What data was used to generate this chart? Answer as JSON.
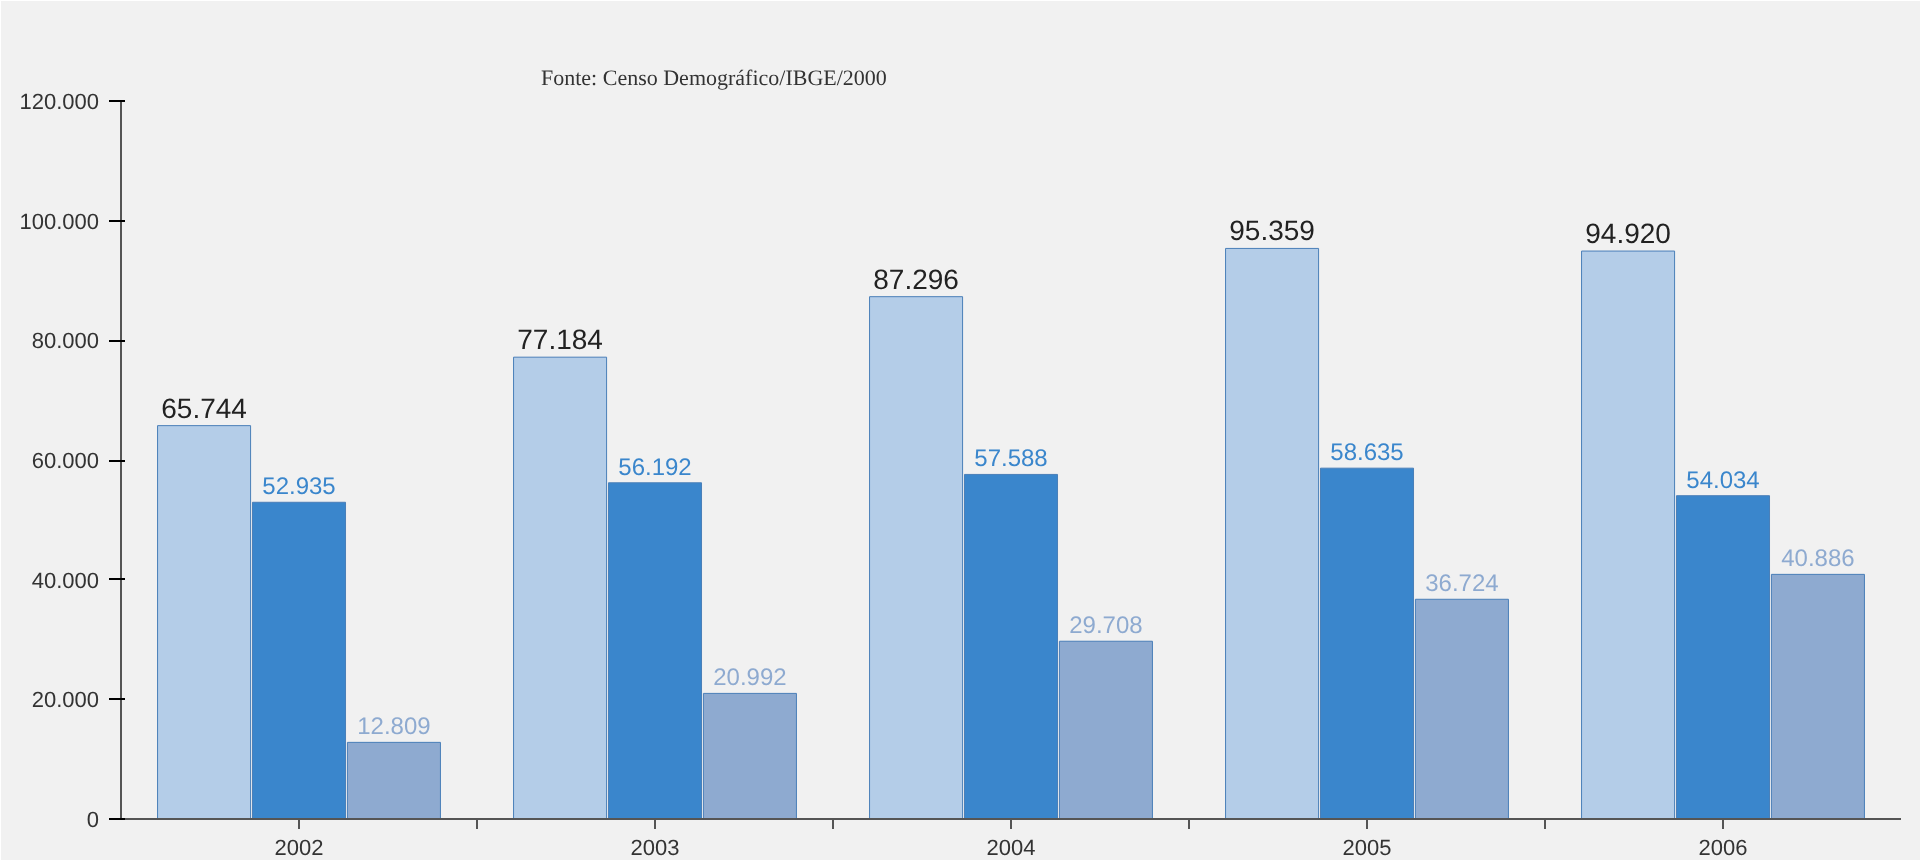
{
  "chart_data": {
    "type": "bar",
    "categories": [
      "2002",
      "2003",
      "2004",
      "2005",
      "2006"
    ],
    "series": [
      {
        "color": "#b4cde8",
        "values": [
          65744,
          77184,
          87296,
          95359,
          94920
        ],
        "value_labels": [
          "65.744",
          "77.184",
          "87.296",
          "95.359",
          "94.920"
        ]
      },
      {
        "color": "#3a86cc",
        "values": [
          52935,
          56192,
          57588,
          58635,
          54034
        ],
        "value_labels": [
          "52.935",
          "56.192",
          "57.588",
          "58.635",
          "54.034"
        ]
      },
      {
        "color": "#8eaad0",
        "values": [
          12809,
          20992,
          29708,
          36724,
          40886
        ],
        "value_labels": [
          "12.809",
          "20.992",
          "29.708",
          "36.724",
          "40.886"
        ]
      }
    ],
    "ylim": [
      0,
      120000
    ],
    "yticks": [
      {
        "value": 0,
        "label": "0"
      },
      {
        "value": 20000,
        "label": "20.000"
      },
      {
        "value": 40000,
        "label": "40.000"
      },
      {
        "value": 60000,
        "label": "60.000"
      },
      {
        "value": 80000,
        "label": "80.000"
      },
      {
        "value": 100000,
        "label": "100.000"
      },
      {
        "value": 120000,
        "label": "120.000"
      }
    ],
    "annotations": [
      "Fonte: Censo Demográfico/IBGE/2000"
    ],
    "grid": false
  }
}
